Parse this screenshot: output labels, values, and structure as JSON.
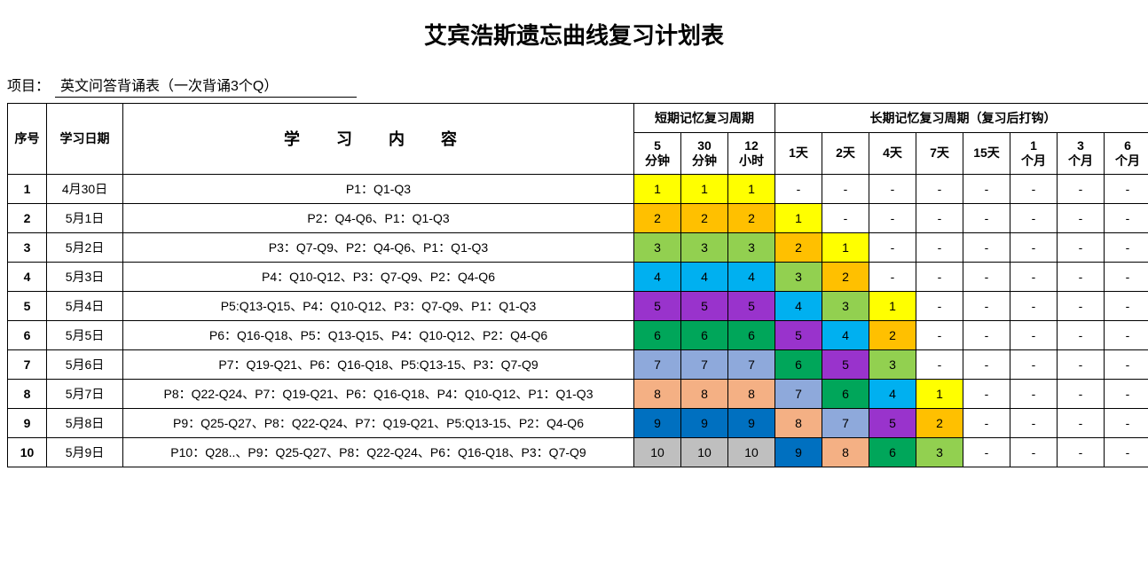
{
  "title": "艾宾浩斯遗忘曲线复习计划表",
  "project": {
    "label": "项目：",
    "value": "英文问答背诵表（一次背诵3个Q）"
  },
  "headers": {
    "seq": "序号",
    "date": "学习日期",
    "content": "学 习 内 容",
    "short_group": "短期记忆复习周期",
    "long_group": "长期记忆复习周期（复习后打钩）",
    "periods": [
      "5\n分钟",
      "30\n分钟",
      "12\n小时",
      "1天",
      "2天",
      "4天",
      "7天",
      "15天",
      "1\n个月",
      "3\n个月",
      "6\n个月"
    ]
  },
  "colors": {
    "c1": "#ffff00",
    "c2": "#ffc000",
    "c3": "#92d050",
    "c4": "#00b0f0",
    "c5": "#9933cc",
    "c6": "#00a65a",
    "c7": "#8ea9db",
    "c8": "#f4b084",
    "c9": "#0070c0",
    "c10": "#bfbfbf",
    "dash": "#ffffff"
  },
  "rows": [
    {
      "seq": "1",
      "date": "4月30日",
      "content": "P1：Q1-Q3",
      "cells": [
        {
          "v": "1",
          "c": "c1"
        },
        {
          "v": "1",
          "c": "c1"
        },
        {
          "v": "1",
          "c": "c1"
        },
        {
          "v": "-",
          "c": "dash"
        },
        {
          "v": "-",
          "c": "dash"
        },
        {
          "v": "-",
          "c": "dash"
        },
        {
          "v": "-",
          "c": "dash"
        },
        {
          "v": "-",
          "c": "dash"
        },
        {
          "v": "-",
          "c": "dash"
        },
        {
          "v": "-",
          "c": "dash"
        },
        {
          "v": "-",
          "c": "dash"
        }
      ]
    },
    {
      "seq": "2",
      "date": "5月1日",
      "content": "P2：Q4-Q6、P1：Q1-Q3",
      "cells": [
        {
          "v": "2",
          "c": "c2"
        },
        {
          "v": "2",
          "c": "c2"
        },
        {
          "v": "2",
          "c": "c2"
        },
        {
          "v": "1",
          "c": "c1"
        },
        {
          "v": "-",
          "c": "dash"
        },
        {
          "v": "-",
          "c": "dash"
        },
        {
          "v": "-",
          "c": "dash"
        },
        {
          "v": "-",
          "c": "dash"
        },
        {
          "v": "-",
          "c": "dash"
        },
        {
          "v": "-",
          "c": "dash"
        },
        {
          "v": "-",
          "c": "dash"
        }
      ]
    },
    {
      "seq": "3",
      "date": "5月2日",
      "content": "P3：Q7-Q9、P2：Q4-Q6、P1：Q1-Q3",
      "cells": [
        {
          "v": "3",
          "c": "c3"
        },
        {
          "v": "3",
          "c": "c3"
        },
        {
          "v": "3",
          "c": "c3"
        },
        {
          "v": "2",
          "c": "c2"
        },
        {
          "v": "1",
          "c": "c1"
        },
        {
          "v": "-",
          "c": "dash"
        },
        {
          "v": "-",
          "c": "dash"
        },
        {
          "v": "-",
          "c": "dash"
        },
        {
          "v": "-",
          "c": "dash"
        },
        {
          "v": "-",
          "c": "dash"
        },
        {
          "v": "-",
          "c": "dash"
        }
      ]
    },
    {
      "seq": "4",
      "date": "5月3日",
      "content": "P4：Q10-Q12、P3：Q7-Q9、P2：Q4-Q6",
      "cells": [
        {
          "v": "4",
          "c": "c4"
        },
        {
          "v": "4",
          "c": "c4"
        },
        {
          "v": "4",
          "c": "c4"
        },
        {
          "v": "3",
          "c": "c3"
        },
        {
          "v": "2",
          "c": "c2"
        },
        {
          "v": "-",
          "c": "dash"
        },
        {
          "v": "-",
          "c": "dash"
        },
        {
          "v": "-",
          "c": "dash"
        },
        {
          "v": "-",
          "c": "dash"
        },
        {
          "v": "-",
          "c": "dash"
        },
        {
          "v": "-",
          "c": "dash"
        }
      ]
    },
    {
      "seq": "5",
      "date": "5月4日",
      "content": "P5:Q13-Q15、P4：Q10-Q12、P3：Q7-Q9、P1：Q1-Q3",
      "cells": [
        {
          "v": "5",
          "c": "c5"
        },
        {
          "v": "5",
          "c": "c5"
        },
        {
          "v": "5",
          "c": "c5"
        },
        {
          "v": "4",
          "c": "c4"
        },
        {
          "v": "3",
          "c": "c3"
        },
        {
          "v": "1",
          "c": "c1"
        },
        {
          "v": "-",
          "c": "dash"
        },
        {
          "v": "-",
          "c": "dash"
        },
        {
          "v": "-",
          "c": "dash"
        },
        {
          "v": "-",
          "c": "dash"
        },
        {
          "v": "-",
          "c": "dash"
        }
      ]
    },
    {
      "seq": "6",
      "date": "5月5日",
      "content": "P6：Q16-Q18、P5：Q13-Q15、P4：Q10-Q12、P2：Q4-Q6",
      "cells": [
        {
          "v": "6",
          "c": "c6"
        },
        {
          "v": "6",
          "c": "c6"
        },
        {
          "v": "6",
          "c": "c6"
        },
        {
          "v": "5",
          "c": "c5"
        },
        {
          "v": "4",
          "c": "c4"
        },
        {
          "v": "2",
          "c": "c2"
        },
        {
          "v": "-",
          "c": "dash"
        },
        {
          "v": "-",
          "c": "dash"
        },
        {
          "v": "-",
          "c": "dash"
        },
        {
          "v": "-",
          "c": "dash"
        },
        {
          "v": "-",
          "c": "dash"
        }
      ]
    },
    {
      "seq": "7",
      "date": "5月6日",
      "content": "P7：Q19-Q21、P6：Q16-Q18、P5:Q13-15、P3：Q7-Q9",
      "cells": [
        {
          "v": "7",
          "c": "c7"
        },
        {
          "v": "7",
          "c": "c7"
        },
        {
          "v": "7",
          "c": "c7"
        },
        {
          "v": "6",
          "c": "c6"
        },
        {
          "v": "5",
          "c": "c5"
        },
        {
          "v": "3",
          "c": "c3"
        },
        {
          "v": "-",
          "c": "dash"
        },
        {
          "v": "-",
          "c": "dash"
        },
        {
          "v": "-",
          "c": "dash"
        },
        {
          "v": "-",
          "c": "dash"
        },
        {
          "v": "-",
          "c": "dash"
        }
      ]
    },
    {
      "seq": "8",
      "date": "5月7日",
      "content": "P8：Q22-Q24、P7：Q19-Q21、P6：Q16-Q18、P4：Q10-Q12、P1：Q1-Q3",
      "cells": [
        {
          "v": "8",
          "c": "c8"
        },
        {
          "v": "8",
          "c": "c8"
        },
        {
          "v": "8",
          "c": "c8"
        },
        {
          "v": "7",
          "c": "c7"
        },
        {
          "v": "6",
          "c": "c6"
        },
        {
          "v": "4",
          "c": "c4"
        },
        {
          "v": "1",
          "c": "c1"
        },
        {
          "v": "-",
          "c": "dash"
        },
        {
          "v": "-",
          "c": "dash"
        },
        {
          "v": "-",
          "c": "dash"
        },
        {
          "v": "-",
          "c": "dash"
        }
      ]
    },
    {
      "seq": "9",
      "date": "5月8日",
      "content": "P9：Q25-Q27、P8：Q22-Q24、P7：Q19-Q21、P5:Q13-15、P2：Q4-Q6",
      "cells": [
        {
          "v": "9",
          "c": "c9"
        },
        {
          "v": "9",
          "c": "c9"
        },
        {
          "v": "9",
          "c": "c9"
        },
        {
          "v": "8",
          "c": "c8"
        },
        {
          "v": "7",
          "c": "c7"
        },
        {
          "v": "5",
          "c": "c5"
        },
        {
          "v": "2",
          "c": "c2"
        },
        {
          "v": "-",
          "c": "dash"
        },
        {
          "v": "-",
          "c": "dash"
        },
        {
          "v": "-",
          "c": "dash"
        },
        {
          "v": "-",
          "c": "dash"
        }
      ]
    },
    {
      "seq": "10",
      "date": "5月9日",
      "content": "P10：Q28..、P9：Q25-Q27、P8：Q22-Q24、P6：Q16-Q18、P3：Q7-Q9",
      "cells": [
        {
          "v": "10",
          "c": "c10"
        },
        {
          "v": "10",
          "c": "c10"
        },
        {
          "v": "10",
          "c": "c10"
        },
        {
          "v": "9",
          "c": "c9"
        },
        {
          "v": "8",
          "c": "c8"
        },
        {
          "v": "6",
          "c": "c6"
        },
        {
          "v": "3",
          "c": "c3"
        },
        {
          "v": "-",
          "c": "dash"
        },
        {
          "v": "-",
          "c": "dash"
        },
        {
          "v": "-",
          "c": "dash"
        },
        {
          "v": "-",
          "c": "dash"
        }
      ]
    }
  ]
}
